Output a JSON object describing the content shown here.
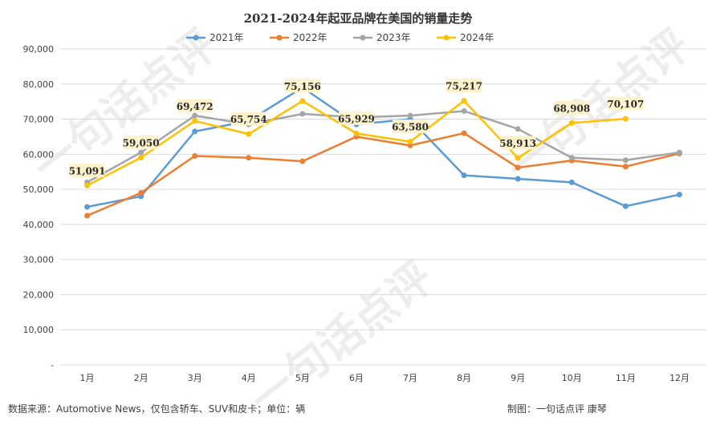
{
  "chart_data": {
    "type": "line",
    "title": "2021-2024年起亚品牌在美国的销量走势",
    "categories": [
      "1月",
      "2月",
      "3月",
      "4月",
      "5月",
      "6月",
      "7月",
      "8月",
      "9月",
      "10月",
      "11月",
      "12月"
    ],
    "ylim": [
      0,
      90000
    ],
    "yticks": [
      0,
      10000,
      20000,
      30000,
      40000,
      50000,
      60000,
      70000,
      80000,
      90000
    ],
    "ytick_labels": [
      "-",
      "10,000",
      "20,000",
      "30,000",
      "40,000",
      "50,000",
      "60,000",
      "70,000",
      "80,000",
      "90,000"
    ],
    "grid": true,
    "legend_position": "top",
    "series": [
      {
        "name": "2021年",
        "color": "#5b9bd5",
        "values": [
          45000,
          48000,
          66500,
          69500,
          79000,
          68500,
          70000,
          54000,
          53000,
          52000,
          45200,
          48500
        ],
        "labels": [
          "",
          "",
          "",
          "",
          "",
          "",
          "",
          "",
          "",
          "",
          "",
          ""
        ]
      },
      {
        "name": "2022年",
        "color": "#ed7d31",
        "values": [
          42500,
          49000,
          59500,
          59000,
          58000,
          65000,
          62500,
          66000,
          56200,
          58200,
          56500,
          60200
        ],
        "labels": [
          "",
          "",
          "",
          "",
          "",
          "",
          "",
          "",
          "",
          "",
          "",
          ""
        ]
      },
      {
        "name": "2023年",
        "color": "#a5a5a5",
        "values": [
          52000,
          60500,
          71000,
          68500,
          71500,
          70500,
          71000,
          72300,
          67200,
          59000,
          58300,
          60500
        ],
        "labels": [
          "",
          "",
          "",
          "",
          "",
          "",
          "",
          "",
          "",
          "",
          "",
          ""
        ]
      },
      {
        "name": "2024年",
        "color": "#ffc000",
        "values": [
          51091,
          59050,
          69472,
          65754,
          75156,
          65929,
          63580,
          75217,
          58913,
          68908,
          70107,
          null
        ],
        "labels": [
          "51,091",
          "59,050",
          "69,472",
          "65,754",
          "75,156",
          "65,929",
          "63,580",
          "75,217",
          "58,913",
          "68,908",
          "70,107",
          ""
        ]
      }
    ]
  },
  "footer": {
    "source": "数据来源：Automotive News，仅包含轿车、SUV和皮卡；单位：辆",
    "credit": "制图：一句话点评  康琴"
  },
  "watermark": {
    "text": "一句话点评"
  },
  "colors": {
    "gridline": "#d9d9d9",
    "label_bg": "#fdf2cc"
  }
}
